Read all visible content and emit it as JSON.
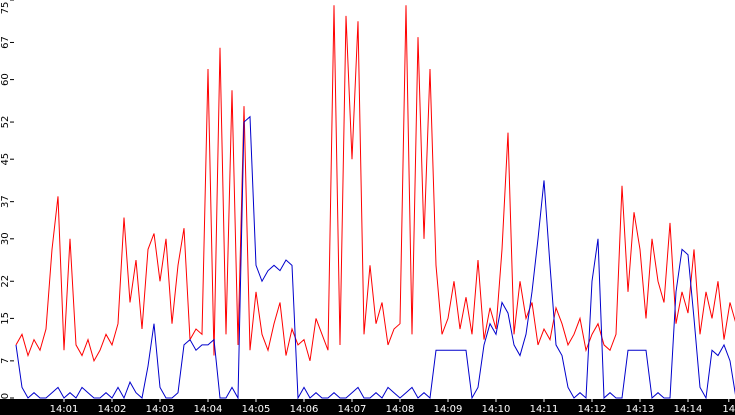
{
  "chart_data": {
    "type": "line",
    "x": [
      0,
      0.125,
      0.25,
      0.375,
      0.5,
      0.625,
      0.75,
      0.875,
      1,
      1.125,
      1.25,
      1.375,
      1.5,
      1.625,
      1.75,
      1.875,
      2,
      2.125,
      2.25,
      2.375,
      2.5,
      2.625,
      2.75,
      2.875,
      3,
      3.125,
      3.25,
      3.375,
      3.5,
      3.625,
      3.75,
      3.875,
      4,
      4.125,
      4.25,
      4.375,
      4.5,
      4.625,
      4.75,
      4.875,
      5,
      5.125,
      5.25,
      5.375,
      5.5,
      5.625,
      5.75,
      5.875,
      6,
      6.125,
      6.25,
      6.375,
      6.5,
      6.625,
      6.75,
      6.875,
      7,
      7.125,
      7.25,
      7.375,
      7.5,
      7.625,
      7.75,
      7.875,
      8,
      8.125,
      8.25,
      8.375,
      8.5,
      8.625,
      8.75,
      8.875,
      9,
      9.125,
      9.25,
      9.375,
      9.5,
      9.625,
      9.75,
      9.875,
      10,
      10.125,
      10.25,
      10.375,
      10.5,
      10.625,
      10.75,
      10.875,
      11,
      11.125,
      11.25,
      11.375,
      11.5,
      11.625,
      11.75,
      11.875,
      12,
      12.125,
      12.25,
      12.375,
      12.5,
      12.625,
      12.75,
      12.875,
      13,
      13.125,
      13.25,
      13.375,
      13.5,
      13.625,
      13.75,
      13.875,
      14,
      14.125,
      14.25,
      14.375,
      14.5,
      14.625,
      14.75,
      14.875,
      15
    ],
    "series": [
      {
        "color": "#ff0000",
        "values": [
          10,
          12,
          8,
          11,
          9,
          13,
          28,
          38,
          9,
          30,
          10,
          8,
          11,
          7,
          9,
          12,
          10,
          14,
          34,
          18,
          26,
          13,
          28,
          31,
          22,
          30,
          14,
          25,
          32,
          11,
          13,
          12,
          62,
          8,
          66,
          12,
          58,
          10,
          55,
          9,
          20,
          12,
          9,
          14,
          18,
          8,
          13,
          10,
          11,
          7,
          15,
          12,
          9,
          74,
          10,
          72,
          45,
          71,
          12,
          25,
          14,
          18,
          10,
          13,
          14,
          74,
          12,
          68,
          30,
          62,
          25,
          12,
          15,
          22,
          13,
          19,
          12,
          26,
          11,
          17,
          13,
          28,
          50,
          12,
          22,
          15,
          18,
          10,
          13,
          11,
          17,
          14,
          10,
          12,
          15,
          9,
          12,
          14,
          10,
          9,
          12,
          40,
          20,
          35,
          28,
          15,
          30,
          22,
          18,
          33,
          14,
          20,
          16,
          28,
          12,
          20,
          15,
          22,
          11,
          18,
          14
        ]
      },
      {
        "color": "#0000cc",
        "values": [
          10,
          2,
          0,
          1,
          0,
          0,
          1,
          2,
          0,
          1,
          0,
          2,
          1,
          0,
          0,
          1,
          0,
          2,
          0,
          3,
          1,
          0,
          6,
          14,
          2,
          0,
          0,
          1,
          10,
          11,
          9,
          10,
          10,
          11,
          0,
          0,
          2,
          0,
          52,
          53,
          25,
          22,
          24,
          25,
          24,
          26,
          25,
          0,
          2,
          0,
          1,
          0,
          0,
          1,
          0,
          0,
          1,
          2,
          0,
          0,
          1,
          0,
          2,
          1,
          0,
          1,
          2,
          0,
          1,
          0,
          9,
          9,
          9,
          9,
          9,
          9,
          0,
          2,
          10,
          14,
          12,
          18,
          16,
          10,
          8,
          12,
          20,
          30,
          41,
          25,
          10,
          8,
          2,
          0,
          1,
          0,
          22,
          30,
          0,
          1,
          0,
          0,
          9,
          9,
          9,
          9,
          0,
          1,
          0,
          0,
          20,
          28,
          27,
          15,
          2,
          0,
          9,
          8,
          10,
          7,
          0
        ]
      }
    ],
    "xlim": [
      0,
      15
    ],
    "xticks": [
      {
        "value": 1,
        "label": "14:01"
      },
      {
        "value": 2,
        "label": "14:02"
      },
      {
        "value": 3,
        "label": "14:03"
      },
      {
        "value": 4,
        "label": "14:04"
      },
      {
        "value": 5,
        "label": "14:05"
      },
      {
        "value": 6,
        "label": "14:06"
      },
      {
        "value": 7,
        "label": "14:07"
      },
      {
        "value": 8,
        "label": "14:08"
      },
      {
        "value": 9,
        "label": "14:09"
      },
      {
        "value": 10,
        "label": "14:10"
      },
      {
        "value": 11,
        "label": "14:11"
      },
      {
        "value": 12,
        "label": "14:12"
      },
      {
        "value": 13,
        "label": "14:13"
      },
      {
        "value": 14,
        "label": "14:14"
      },
      {
        "value": 14.85,
        "label": "14"
      }
    ],
    "ylim": [
      0,
      75
    ],
    "yticks": [
      0,
      7,
      15,
      22,
      30,
      37,
      45,
      52,
      60,
      67,
      75
    ]
  }
}
